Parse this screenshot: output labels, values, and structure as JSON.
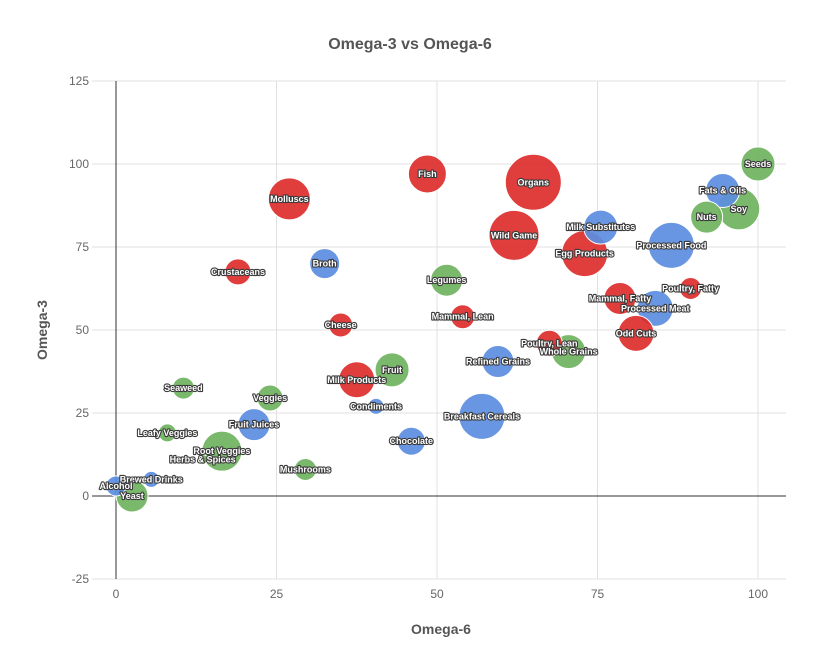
{
  "chart_data": {
    "type": "bubble",
    "title": "Omega-3 vs Omega-6",
    "xlabel": "Omega-6",
    "ylabel": "Omega-3",
    "xlim": [
      0,
      100
    ],
    "ylim": [
      -25,
      125
    ],
    "xticks": [
      0,
      25,
      50,
      75,
      100
    ],
    "yticks": [
      -25,
      0,
      25,
      50,
      75,
      100,
      125
    ],
    "grid": true,
    "legend": "none",
    "colors": {
      "red": "#dd2c2c",
      "blue": "#5b8de0",
      "green": "#6fb35e"
    },
    "points": [
      {
        "label": "Seeds",
        "x": 100,
        "y": 100,
        "size": 17,
        "color": "green"
      },
      {
        "label": "Fats & Oils",
        "x": 94.5,
        "y": 92,
        "size": 17,
        "color": "blue"
      },
      {
        "label": "Soy",
        "x": 97,
        "y": 86.5,
        "size": 21,
        "color": "green"
      },
      {
        "label": "Nuts",
        "x": 92,
        "y": 84,
        "size": 16,
        "color": "green"
      },
      {
        "label": "Processed Food",
        "x": 86.5,
        "y": 75.5,
        "size": 23,
        "color": "blue"
      },
      {
        "label": "Milk Substitutes",
        "x": 75.5,
        "y": 81,
        "size": 17,
        "color": "blue"
      },
      {
        "label": "Organs",
        "x": 65,
        "y": 94.5,
        "size": 28,
        "color": "red"
      },
      {
        "label": "Fish",
        "x": 48.5,
        "y": 97,
        "size": 19,
        "color": "red"
      },
      {
        "label": "Wild Game",
        "x": 62,
        "y": 78.5,
        "size": 25,
        "color": "red"
      },
      {
        "label": "Egg Products",
        "x": 73,
        "y": 73,
        "size": 23,
        "color": "red"
      },
      {
        "label": "Poultry, Fatty",
        "x": 89.5,
        "y": 62.5,
        "size": 11,
        "color": "red"
      },
      {
        "label": "Mammal, Fatty",
        "x": 78.5,
        "y": 59.5,
        "size": 16,
        "color": "red"
      },
      {
        "label": "Processed Meat",
        "x": 84,
        "y": 56.5,
        "size": 18,
        "color": "blue"
      },
      {
        "label": "Odd Cuts",
        "x": 81,
        "y": 49,
        "size": 18,
        "color": "red"
      },
      {
        "label": "Molluscs",
        "x": 27,
        "y": 89.5,
        "size": 21,
        "color": "red"
      },
      {
        "label": "Broth",
        "x": 32.5,
        "y": 70,
        "size": 15,
        "color": "blue"
      },
      {
        "label": "Crustaceans",
        "x": 19,
        "y": 67.5,
        "size": 13,
        "color": "red"
      },
      {
        "label": "Legumes",
        "x": 51.5,
        "y": 65,
        "size": 16,
        "color": "green"
      },
      {
        "label": "Mammal, Lean",
        "x": 54,
        "y": 54,
        "size": 12,
        "color": "red"
      },
      {
        "label": "Cheese",
        "x": 35,
        "y": 51.5,
        "size": 12,
        "color": "red"
      },
      {
        "label": "Poultry, Lean",
        "x": 67.5,
        "y": 46,
        "size": 13,
        "color": "red"
      },
      {
        "label": "Whole Grains",
        "x": 70.5,
        "y": 43.5,
        "size": 17,
        "color": "green"
      },
      {
        "label": "Refined Grains",
        "x": 59.5,
        "y": 40.5,
        "size": 16,
        "color": "blue"
      },
      {
        "label": "Fruit",
        "x": 43,
        "y": 38,
        "size": 17,
        "color": "green"
      },
      {
        "label": "Milk Products",
        "x": 37.5,
        "y": 35,
        "size": 18,
        "color": "red"
      },
      {
        "label": "Seaweed",
        "x": 10.5,
        "y": 32.5,
        "size": 11,
        "color": "green"
      },
      {
        "label": "Veggies",
        "x": 24,
        "y": 29.5,
        "size": 13,
        "color": "green"
      },
      {
        "label": "Condiments",
        "x": 40.5,
        "y": 27,
        "size": 8,
        "color": "blue"
      },
      {
        "label": "Breakfast Cereals",
        "x": 57,
        "y": 24,
        "size": 23,
        "color": "blue"
      },
      {
        "label": "Fruit Juices",
        "x": 21.5,
        "y": 21.5,
        "size": 16,
        "color": "blue"
      },
      {
        "label": "Leafy Veggies",
        "x": 8,
        "y": 19,
        "size": 9,
        "color": "green"
      },
      {
        "label": "Chocolate",
        "x": 46,
        "y": 16.5,
        "size": 14,
        "color": "blue"
      },
      {
        "label": "Root Veggies",
        "x": 16.5,
        "y": 13.5,
        "size": 20,
        "color": "green"
      },
      {
        "label": "Herbs & Spices",
        "x": 13.5,
        "y": 11,
        "size": 5,
        "color": "green"
      },
      {
        "label": "Mushrooms",
        "x": 29.5,
        "y": 8,
        "size": 11,
        "color": "green"
      },
      {
        "label": "Brewed Drinks",
        "x": 5.5,
        "y": 5,
        "size": 8,
        "color": "blue"
      },
      {
        "label": "Alcohol",
        "x": 0,
        "y": 3,
        "size": 10,
        "color": "blue"
      },
      {
        "label": "Yeast",
        "x": 2.5,
        "y": 0,
        "size": 16,
        "color": "green"
      }
    ]
  }
}
